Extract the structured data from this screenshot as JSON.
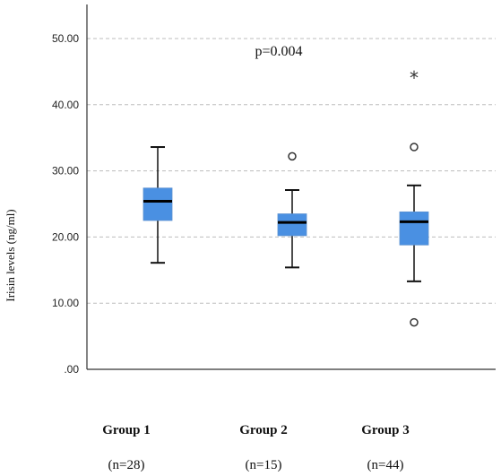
{
  "chart_data": {
    "type": "box",
    "ylabel": "Irisin levels (ng/ml)",
    "ylim": [
      0,
      55
    ],
    "yticks": [
      0,
      10,
      20,
      30,
      40,
      50
    ],
    "ytick_labels": [
      ".00",
      "10.00",
      "20.00",
      "30.00",
      "40.00",
      "50.00"
    ],
    "grid": "horizontal dashed",
    "annotation": "p=0.004",
    "box_color": "#4a90e2",
    "groups": [
      {
        "label": "Group 1",
        "n_label": "(n=28)",
        "whisker_low": 16.1,
        "q1": 22.5,
        "median": 25.4,
        "q3": 27.4,
        "whisker_high": 33.6,
        "outliers": [],
        "extremes": []
      },
      {
        "label": "Group 2",
        "n_label": "(n=15)",
        "whisker_low": 15.4,
        "q1": 20.2,
        "median": 22.2,
        "q3": 23.5,
        "whisker_high": 27.1,
        "outliers": [
          32.2
        ],
        "extremes": []
      },
      {
        "label": "Group 3",
        "n_label": "(n=44)",
        "whisker_low": 13.3,
        "q1": 18.8,
        "median": 22.3,
        "q3": 23.8,
        "whisker_high": 27.8,
        "outliers": [
          33.6,
          7.1
        ],
        "extremes": [
          44.2
        ]
      }
    ]
  }
}
